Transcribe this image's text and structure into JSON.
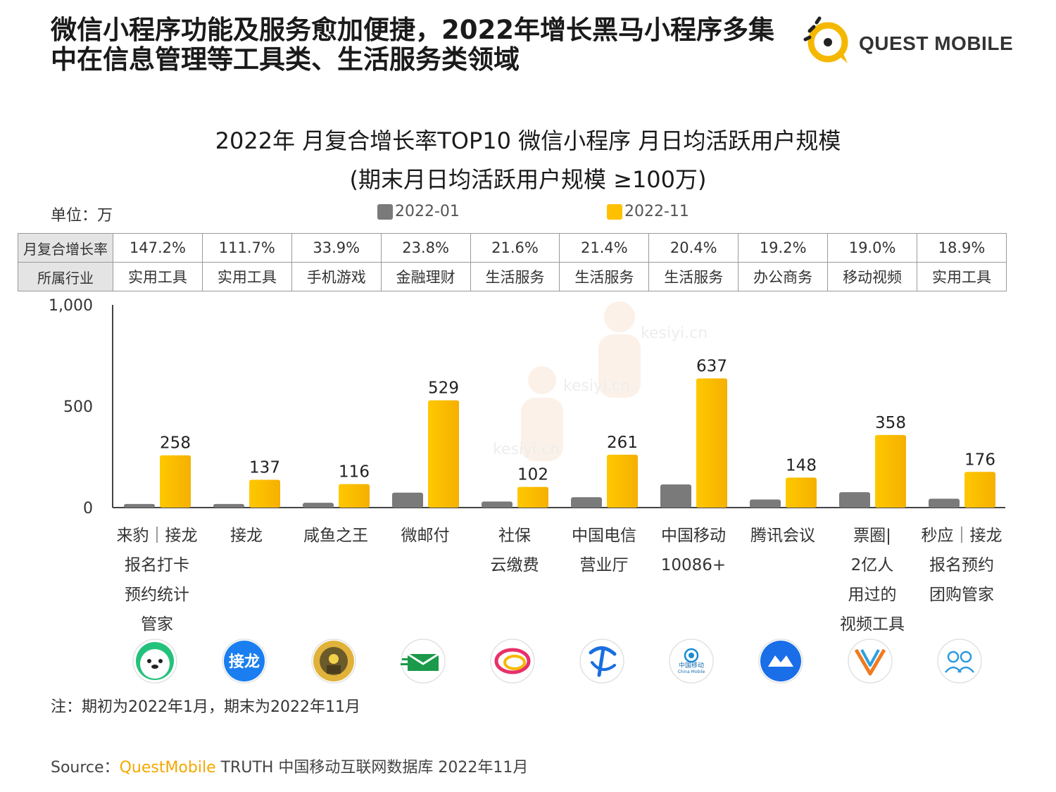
{
  "headline": "微信小程序功能及服务愈加便捷，2022年增长黑马小程序多集中在信息管理等工具类、生活服务类领域",
  "logo": {
    "text": "QUEST MOBILE",
    "icon": "questmobile-logo-icon"
  },
  "watermark_text": "kesiyi.cn",
  "chart_data": {
    "type": "bar",
    "title": "2022年 月复合增长率TOP10 微信小程序 月日均活跃用户规模",
    "subtitle": "(期末月日均活跃用户规模 ≥100万)",
    "unit_label": "单位：万",
    "ylim": [
      0,
      1000
    ],
    "yticks": [
      "0",
      "500",
      "1,000"
    ],
    "ytick_values": [
      0,
      500,
      1000
    ],
    "categories": [
      "来豹｜接龙报名打卡预约统计管家",
      "接龙",
      "咸鱼之王",
      "微邮付",
      "社保云缴费",
      "中国电信营业厅",
      "中国移动10086+",
      "腾讯会议",
      "票圈|2亿人用过的视频工具",
      "秒应｜接龙报名预约团购管家"
    ],
    "category_lines": [
      [
        "来豹｜接龙",
        "报名打卡",
        "预约统计",
        "管家"
      ],
      [
        "接龙"
      ],
      [
        "咸鱼之王"
      ],
      [
        "微邮付"
      ],
      [
        "社保",
        "云缴费"
      ],
      [
        "中国电信",
        "营业厅"
      ],
      [
        "中国移动",
        "10086+"
      ],
      [
        "腾讯会议"
      ],
      [
        "票圈|",
        "2亿人",
        "用过的",
        "视频工具"
      ],
      [
        "秒应｜接龙",
        "报名预约",
        "团购管家"
      ]
    ],
    "series": [
      {
        "name": "2022-01",
        "color": "#7a7a7a",
        "values": [
          18,
          18,
          24,
          74,
          30,
          51,
          114,
          40,
          76,
          44
        ],
        "labels_shown": false
      },
      {
        "name": "2022-11",
        "color": "#ffc000",
        "values": [
          258,
          137,
          116,
          529,
          102,
          261,
          637,
          148,
          358,
          176
        ],
        "labels_shown": true
      }
    ],
    "grid": false,
    "legend_position": "top-center"
  },
  "table": {
    "row_headers": [
      "月复合增长率",
      "所属行业"
    ],
    "growth": [
      "147.2%",
      "111.7%",
      "33.9%",
      "23.8%",
      "21.6%",
      "21.4%",
      "20.4%",
      "19.2%",
      "19.0%",
      "18.9%"
    ],
    "industry": [
      "实用工具",
      "实用工具",
      "手机游戏",
      "金融理财",
      "生活服务",
      "生活服务",
      "生活服务",
      "办公商务",
      "移动视频",
      "实用工具"
    ]
  },
  "app_icons": [
    "seal-mascot-icon",
    "jielong-app-icon",
    "xianyu-king-game-icon",
    "envelope-pay-icon",
    "social-security-cloud-icon",
    "china-telecom-icon",
    "china-mobile-icon",
    "tencent-meeting-icon",
    "piaoquan-v-icon",
    "miaoying-people-icon"
  ],
  "jielong_icon_text": "接龙",
  "china_mobile_icon_text": "中国移动",
  "china_mobile_icon_en": "China Mobile",
  "note": "注：期初为2022年1月，期末为2022年11月",
  "source": {
    "prefix": "Source：",
    "brand": "QuestMobile",
    "rest": " TRUTH 中国移动互联网数据库 2022年11月"
  }
}
